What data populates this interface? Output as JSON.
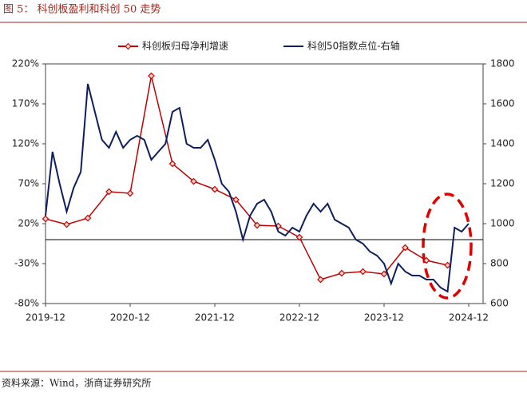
{
  "chart_data": {
    "type": "line",
    "title": "图 5： 科创板盈利和科创 50 走势",
    "source": "资料来源：Wind，浙商证券研究所",
    "ylim": [
      -80,
      220
    ],
    "yticks": [
      {
        "value": -80,
        "label": "-80%"
      },
      {
        "value": -30,
        "label": "-30%"
      },
      {
        "value": 20,
        "label": "20%"
      },
      {
        "value": 70,
        "label": "70%"
      },
      {
        "value": 120,
        "label": "120%"
      },
      {
        "value": 170,
        "label": "170%"
      },
      {
        "value": 220,
        "label": "220%"
      }
    ],
    "y2lim": [
      600,
      1800
    ],
    "y2ticks": [
      600,
      800,
      1000,
      1200,
      1400,
      1600,
      1800
    ],
    "xticks": [
      "2019-12",
      "2020-12",
      "2021-12",
      "2022-12",
      "2023-12",
      "2024-12"
    ],
    "series": [
      {
        "name": "科创板归母净利增速",
        "color": "#c00000",
        "x": [
          "2019-12",
          "2020-03",
          "2020-06",
          "2020-09",
          "2020-12",
          "2021-03",
          "2021-06",
          "2021-09",
          "2021-12",
          "2022-03",
          "2022-06",
          "2022-09",
          "2022-12",
          "2023-03",
          "2023-06",
          "2023-09",
          "2023-12",
          "2024-03",
          "2024-06",
          "2024-09"
        ],
        "values": [
          26,
          19,
          27,
          60,
          58,
          205,
          95,
          73,
          63,
          50,
          18,
          17,
          3,
          -50,
          -42,
          -40,
          -43,
          -10,
          -26,
          -32
        ]
      },
      {
        "name": "科创50指数点位-右轴",
        "color": "#0d1f5c",
        "axis": "y2",
        "x": [
          "2019-12",
          "2020-01",
          "2020-02",
          "2020-03",
          "2020-04",
          "2020-05",
          "2020-06",
          "2020-07",
          "2020-08",
          "2020-09",
          "2020-10",
          "2020-11",
          "2020-12",
          "2021-01",
          "2021-02",
          "2021-03",
          "2021-04",
          "2021-05",
          "2021-06",
          "2021-07",
          "2021-08",
          "2021-09",
          "2021-10",
          "2021-11",
          "2021-12",
          "2022-01",
          "2022-02",
          "2022-03",
          "2022-04",
          "2022-05",
          "2022-06",
          "2022-07",
          "2022-08",
          "2022-09",
          "2022-10",
          "2022-11",
          "2022-12",
          "2023-01",
          "2023-02",
          "2023-03",
          "2023-04",
          "2023-05",
          "2023-06",
          "2023-07",
          "2023-08",
          "2023-09",
          "2023-10",
          "2023-11",
          "2023-12",
          "2024-01",
          "2024-02",
          "2024-03",
          "2024-04",
          "2024-05",
          "2024-06",
          "2024-07",
          "2024-08",
          "2024-09",
          "2024-10",
          "2024-11",
          "2024-12"
        ],
        "values": [
          1040,
          1360,
          1200,
          1060,
          1180,
          1260,
          1700,
          1560,
          1420,
          1380,
          1460,
          1380,
          1420,
          1440,
          1420,
          1320,
          1360,
          1400,
          1560,
          1580,
          1400,
          1380,
          1380,
          1420,
          1320,
          1200,
          1160,
          1060,
          920,
          1040,
          1100,
          1120,
          1060,
          960,
          940,
          980,
          960,
          1040,
          1100,
          1060,
          1100,
          1020,
          1000,
          980,
          920,
          900,
          860,
          840,
          800,
          700,
          800,
          760,
          740,
          740,
          720,
          720,
          680,
          660,
          980,
          960,
          1000
        ]
      }
    ]
  }
}
